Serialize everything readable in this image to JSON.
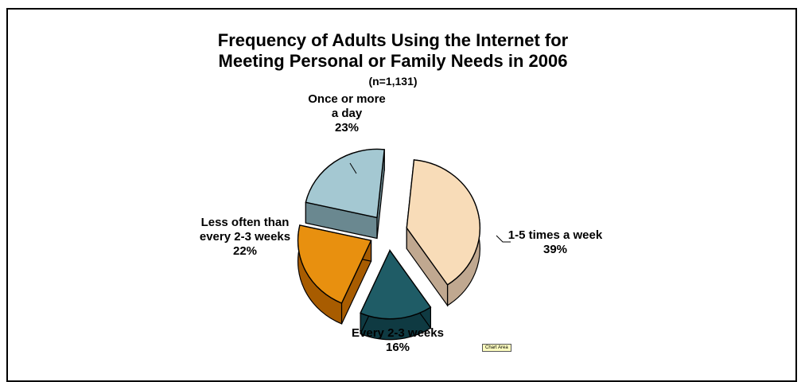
{
  "chart_data": {
    "type": "pie",
    "title_lines": [
      "Frequency of Adults Using the Internet for",
      "Meeting Personal or Family Needs in 2006"
    ],
    "subtitle": "(n=1,131)",
    "slices": [
      {
        "label_lines": [
          "1-5 times a week"
        ],
        "pct_label": "39%",
        "value": 39,
        "color": "#f8dcb8",
        "side": "#c0a890"
      },
      {
        "label_lines": [
          "Every 2-3 weeks"
        ],
        "pct_label": "16%",
        "value": 16,
        "color": "#1f5c66",
        "side": "#0f3a42"
      },
      {
        "label_lines": [
          "Less often than",
          "every 2-3 weeks"
        ],
        "pct_label": "22%",
        "value": 22,
        "color": "#e8900f",
        "side": "#a85c00"
      },
      {
        "label_lines": [
          "Once or more",
          "a day"
        ],
        "pct_label": "23%",
        "value": 23,
        "color": "#a4c8d2",
        "side": "#6a8890"
      }
    ],
    "tooltip": "Chart Area"
  }
}
